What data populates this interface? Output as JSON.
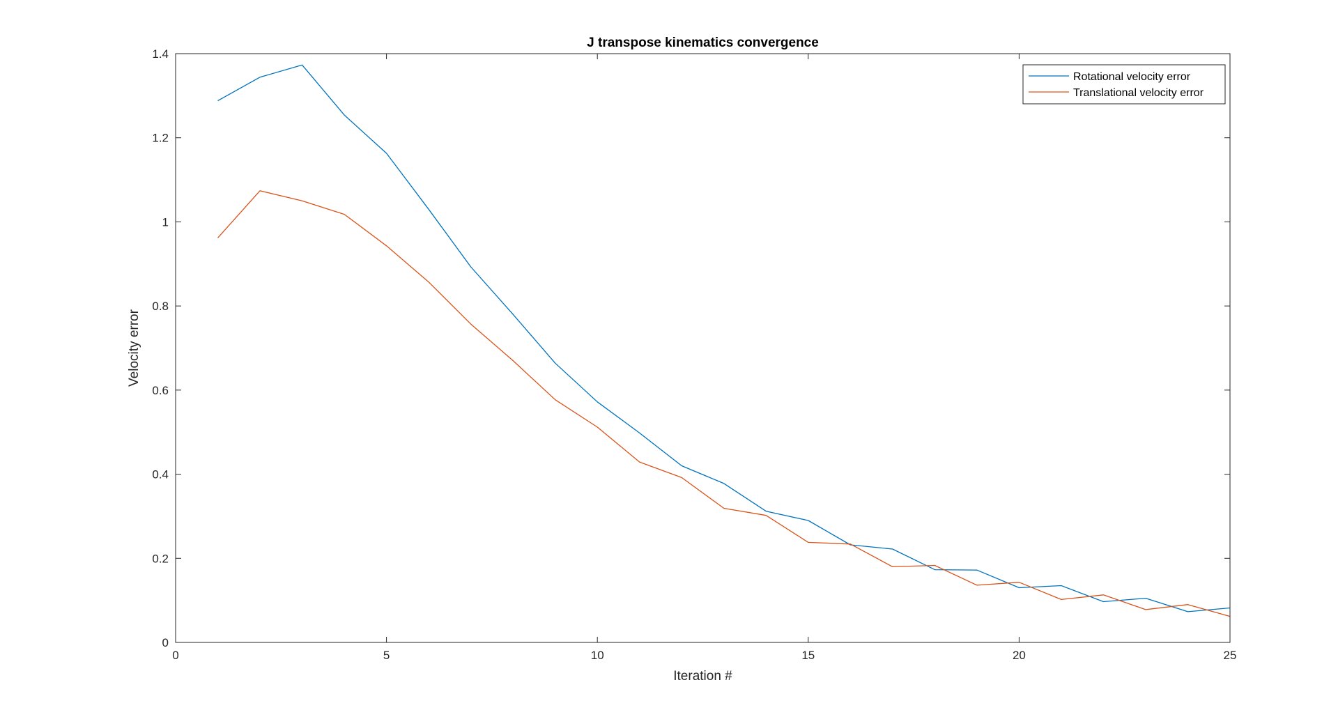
{
  "chart_data": {
    "type": "line",
    "title": "J transpose kinematics convergence",
    "xlabel": "Iteration #",
    "ylabel": "Velocity error",
    "xlim": [
      0,
      25
    ],
    "ylim": [
      0,
      1.4
    ],
    "xticks": [
      0,
      5,
      10,
      15,
      20,
      25
    ],
    "yticks": [
      0,
      0.2,
      0.4,
      0.6,
      0.8,
      1,
      1.2,
      1.4
    ],
    "grid": false,
    "legend_location": "top-right",
    "x": [
      1,
      2,
      3,
      4,
      5,
      6,
      7,
      8,
      9,
      10,
      11,
      12,
      13,
      14,
      15,
      16,
      17,
      18,
      19,
      20,
      21,
      22,
      23,
      24,
      25
    ],
    "series": [
      {
        "name": "Rotational velocity error",
        "color": "#0072BD",
        "values": [
          1.288,
          1.344,
          1.373,
          1.254,
          1.163,
          1.03,
          0.893,
          0.78,
          0.664,
          0.572,
          0.498,
          0.42,
          0.378,
          0.312,
          0.29,
          0.232,
          0.222,
          0.173,
          0.172,
          0.13,
          0.135,
          0.097,
          0.105,
          0.073,
          0.082
        ]
      },
      {
        "name": "Translational velocity error",
        "color": "#D95319",
        "values": [
          0.962,
          1.074,
          1.05,
          1.018,
          0.943,
          0.857,
          0.757,
          0.67,
          0.577,
          0.512,
          0.429,
          0.392,
          0.319,
          0.302,
          0.238,
          0.234,
          0.18,
          0.183,
          0.136,
          0.143,
          0.102,
          0.113,
          0.078,
          0.09,
          0.062
        ]
      }
    ]
  }
}
